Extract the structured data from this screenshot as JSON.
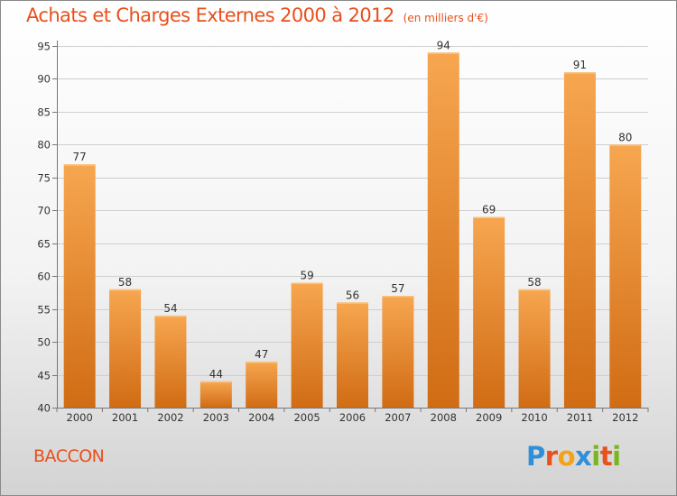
{
  "header": {
    "title": "Achats et Charges Externes 2000 à 2012",
    "unit": "(en milliers d'€)"
  },
  "footer": {
    "location": "BACCON",
    "logo": {
      "text": "Proxiti",
      "letters": [
        {
          "char": "P",
          "color": "#2f8fd8"
        },
        {
          "char": "r",
          "color": "#e8501c"
        },
        {
          "char": "o",
          "color": "#f2a31b"
        },
        {
          "char": "x",
          "color": "#2f8fd8"
        },
        {
          "char": "i",
          "color": "#7ab51d"
        },
        {
          "char": "t",
          "color": "#e8501c"
        },
        {
          "char": "i",
          "color": "#7ab51d"
        }
      ]
    }
  },
  "colors": {
    "accent": "#e8501c",
    "bar_light": "#f7a650",
    "bar_dark": "#d06c14",
    "grid": "#cfcfcf"
  },
  "chart_data": {
    "type": "bar",
    "title": "Achats et Charges Externes 2000 à 2012",
    "subtitle": "(en milliers d'€)",
    "categories": [
      "2000",
      "2001",
      "2002",
      "2003",
      "2004",
      "2005",
      "2006",
      "2007",
      "2008",
      "2009",
      "2010",
      "2011",
      "2012"
    ],
    "values": [
      77,
      58,
      54,
      44,
      47,
      59,
      56,
      57,
      94,
      69,
      58,
      91,
      80
    ],
    "ylim": [
      40,
      95
    ],
    "yticks": [
      40,
      45,
      50,
      55,
      60,
      65,
      70,
      75,
      80,
      85,
      90,
      95
    ],
    "grid": true,
    "data_labels": true,
    "xlabel": "",
    "ylabel": ""
  }
}
